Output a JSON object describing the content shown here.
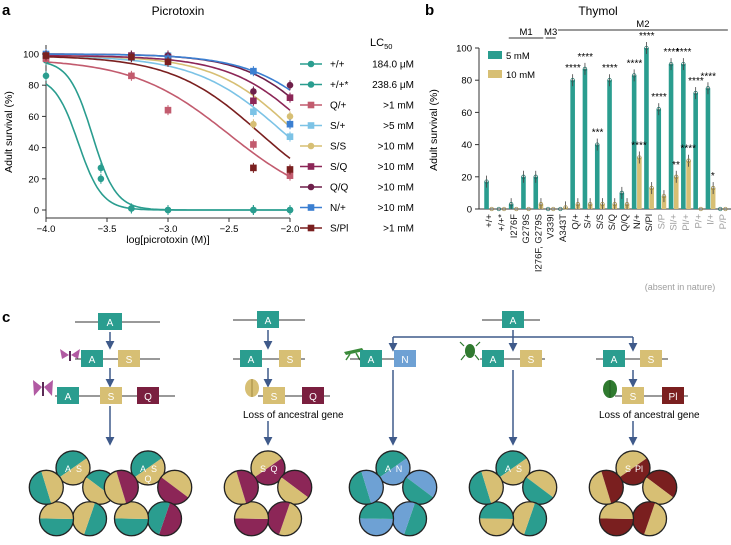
{
  "panels": {
    "a": {
      "letter": "a",
      "title": "Picrotoxin"
    },
    "b": {
      "letter": "b",
      "title": "Thymol"
    },
    "c": {
      "letter": "c"
    }
  },
  "colors": {
    "teal": "#2a9d8f",
    "tan": "#d7bf74",
    "rose": "#c25b6e",
    "lightblue": "#7cc3e6",
    "purple": "#6e1f4a",
    "blue": "#3b7fd1",
    "darkred": "#7a1f1f",
    "wine": "#8c2657",
    "nblue": "#6ea1d4",
    "arrow": "#3f5a8a",
    "moth": "#b15aa3",
    "grey": "#9e9e9e"
  },
  "chart_data": [
    {
      "type": "line",
      "title": "Picrotoxin",
      "xlabel": "log[picrotoxin (M)]",
      "ylabel": "Adult survival (%)",
      "xlim": [
        -4.0,
        -2.0
      ],
      "ylim": [
        0,
        100
      ],
      "xticks": [
        "-4.0",
        "-3.5",
        "-3.0",
        "-2.5",
        "-2.0"
      ],
      "yticks": [
        "0",
        "20",
        "40",
        "60",
        "80",
        "100"
      ],
      "legend_header": "LC",
      "legend_header_sub": "50",
      "series": [
        {
          "name": "+/+",
          "lc50": "184.0 μM",
          "color": "#2a9d8f",
          "marker": "circle",
          "ec50": -3.735,
          "hill": 4.5,
          "points": [
            [
              -4.0,
              86
            ],
            [
              -3.55,
              27
            ],
            [
              -3.3,
              1
            ],
            [
              -3.0,
              0
            ],
            [
              -2.3,
              0
            ],
            [
              -2.0,
              0
            ]
          ]
        },
        {
          "name": "+/+*",
          "lc50": "238.6 μM",
          "color": "#2a9d8f",
          "marker": "circle",
          "ec50": -3.62,
          "hill": 4.5,
          "points": [
            [
              -4.0,
              96
            ],
            [
              -3.55,
              20
            ],
            [
              -3.3,
              1
            ],
            [
              -3.0,
              0
            ],
            [
              -2.3,
              0
            ],
            [
              -2.0,
              0
            ]
          ]
        },
        {
          "name": "Q/+",
          "lc50": ">1 mM",
          "color": "#c25b6e",
          "marker": "square",
          "ec50": -2.5,
          "hill": 1.1,
          "points": [
            [
              -4.0,
              97
            ],
            [
              -3.3,
              86
            ],
            [
              -3.0,
              64
            ],
            [
              -2.3,
              42
            ],
            [
              -2.0,
              22
            ]
          ]
        },
        {
          "name": "S/+",
          "lc50": ">5 mM",
          "color": "#7cc3e6",
          "marker": "square",
          "ec50": -2.05,
          "hill": 1.2,
          "points": [
            [
              -4.0,
              99
            ],
            [
              -3.3,
              98
            ],
            [
              -3.0,
              99
            ],
            [
              -2.3,
              63
            ],
            [
              -2.0,
              47
            ]
          ]
        },
        {
          "name": "S/S",
          "lc50": ">10 mM",
          "color": "#d7bf74",
          "marker": "circle",
          "ec50": -1.95,
          "hill": 1.3,
          "points": [
            [
              -4.0,
              99
            ],
            [
              -3.3,
              99
            ],
            [
              -3.0,
              98
            ],
            [
              -2.3,
              55
            ],
            [
              -2.0,
              60
            ]
          ]
        },
        {
          "name": "S/Q",
          "lc50": ">10 mM",
          "color": "#8c2657",
          "marker": "square",
          "ec50": -1.8,
          "hill": 1.3,
          "points": [
            [
              -4.0,
              99
            ],
            [
              -3.3,
              99
            ],
            [
              -3.0,
              98
            ],
            [
              -2.3,
              70
            ],
            [
              -2.0,
              72
            ]
          ]
        },
        {
          "name": "Q/Q",
          "lc50": ">10 mM",
          "color": "#6e1f4a",
          "marker": "circle",
          "ec50": -1.7,
          "hill": 1.4,
          "points": [
            [
              -4.0,
              100
            ],
            [
              -3.3,
              99
            ],
            [
              -3.0,
              99
            ],
            [
              -2.3,
              76
            ],
            [
              -2.0,
              80
            ]
          ]
        },
        {
          "name": "N/+",
          "lc50": ">10 mM",
          "color": "#3b7fd1",
          "marker": "square",
          "ec50": -1.6,
          "hill": 1.3,
          "points": [
            [
              -4.0,
              100
            ],
            [
              -3.3,
              98
            ],
            [
              -3.0,
              97
            ],
            [
              -2.3,
              89
            ],
            [
              -2.0,
              55
            ]
          ]
        },
        {
          "name": "S/Pl",
          "lc50": ">1 mM",
          "color": "#7a1f1f",
          "marker": "square",
          "ec50": -2.25,
          "hill": 1.2,
          "points": [
            [
              -4.0,
              99
            ],
            [
              -3.3,
              98
            ],
            [
              -3.0,
              95
            ],
            [
              -2.3,
              27
            ],
            [
              -2.0,
              26
            ]
          ]
        }
      ]
    },
    {
      "type": "bar",
      "title": "Thymol",
      "ylabel": "Adult survival (%)",
      "ylim": [
        0,
        100
      ],
      "yticks": [
        "0",
        "20",
        "40",
        "60",
        "80",
        "100"
      ],
      "categories": [
        "+/+",
        "+/+*",
        "I276F",
        "G279S",
        "I276F, G279S",
        "V339I",
        "A343T",
        "Q/+",
        "S/+",
        "S/S",
        "S/Q",
        "Q/Q",
        "N/+",
        "S/Pl",
        "S/P",
        "Sl/+",
        "Pl/+",
        "P/+",
        "I/+",
        "P/P"
      ],
      "absent_in_nature": [
        false,
        false,
        false,
        false,
        false,
        false,
        false,
        false,
        false,
        false,
        false,
        false,
        false,
        false,
        true,
        true,
        true,
        true,
        true,
        true
      ],
      "series": [
        {
          "name": "5 mM",
          "color": "#2a9d8f",
          "values": [
            17,
            0,
            3,
            20,
            20,
            0,
            0,
            80,
            87,
            40,
            80,
            10,
            83,
            100,
            62,
            90,
            90,
            72,
            75,
            0
          ]
        },
        {
          "name": "10 mM",
          "color": "#d7bf74",
          "values": [
            0,
            0,
            0,
            0,
            3,
            0,
            1,
            3,
            3,
            3,
            3,
            3,
            32,
            13,
            8,
            20,
            30,
            0,
            13,
            0
          ]
        }
      ],
      "annotations": [
        {
          "index": 7,
          "series": 0,
          "label": "****"
        },
        {
          "index": 8,
          "series": 0,
          "label": "****"
        },
        {
          "index": 9,
          "series": 0,
          "label": "***"
        },
        {
          "index": 10,
          "series": 0,
          "label": "****"
        },
        {
          "index": 12,
          "series": 0,
          "label": "****"
        },
        {
          "index": 12,
          "series": 1,
          "label": "****"
        },
        {
          "index": 13,
          "series": 0,
          "label": "****"
        },
        {
          "index": 14,
          "series": 0,
          "label": "****"
        },
        {
          "index": 15,
          "series": 0,
          "label": "****"
        },
        {
          "index": 15,
          "series": 1,
          "label": "**"
        },
        {
          "index": 16,
          "series": 0,
          "label": "****"
        },
        {
          "index": 16,
          "series": 1,
          "label": "****"
        },
        {
          "index": 17,
          "series": 0,
          "label": "****"
        },
        {
          "index": 18,
          "series": 0,
          "label": "****"
        },
        {
          "index": 18,
          "series": 1,
          "label": "*"
        }
      ],
      "groups": [
        {
          "label": "M1",
          "from": 2,
          "to": 4
        },
        {
          "label": "M3",
          "from": 5,
          "to": 5
        },
        {
          "label": "M2",
          "from": 6,
          "to": 19
        }
      ],
      "absent_label": "(absent in nature)"
    }
  ],
  "diagram": {
    "gene_a": "A",
    "gene_s": "S",
    "gene_q": "Q",
    "gene_n": "N",
    "gene_pl": "Pl",
    "loss_label": "Loss of ancestral gene",
    "pentamer_labels": [
      {
        "tl": "A",
        "tr": "S"
      },
      {
        "tl": "A",
        "tr": "S",
        "c": "Q"
      },
      {
        "tl": "S",
        "tr": "Q"
      },
      {
        "tl": "A",
        "tr": "N"
      },
      {
        "tl": "A",
        "tr": "S"
      },
      {
        "tl": "S",
        "tr": "Pl"
      }
    ]
  }
}
